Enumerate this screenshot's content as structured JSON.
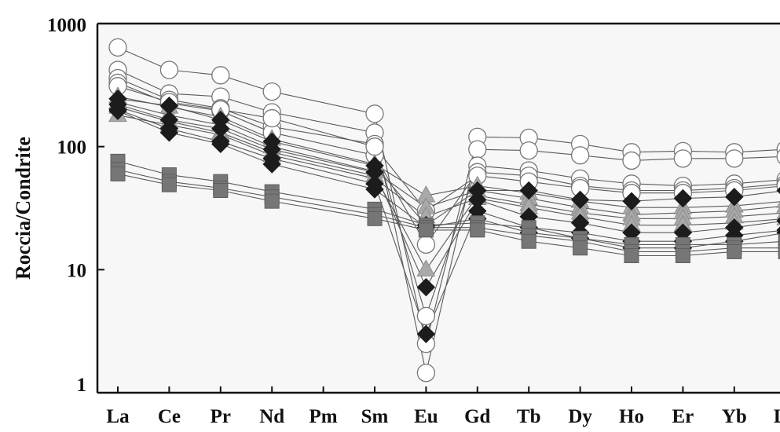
{
  "chart_data": {
    "type": "line",
    "title": "",
    "xlabel": "",
    "ylabel": "Roccia/Condrite",
    "yscale": "log",
    "ylim": [
      1,
      1000
    ],
    "yticks": [
      {
        "value": 1,
        "label": "1"
      },
      {
        "value": 10,
        "label": "10"
      },
      {
        "value": 100,
        "label": "100"
      },
      {
        "value": 1000,
        "label": "1000"
      }
    ],
    "categories": [
      "La",
      "Ce",
      "Pr",
      "Nd",
      "Pm",
      "Sm",
      "Eu",
      "Gd",
      "Tb",
      "Dy",
      "Ho",
      "Er",
      "Yb",
      "Lu"
    ],
    "grid": false,
    "legend": "none",
    "colors": {
      "background": "#f7f7f7",
      "line": "#5a5a5a",
      "open_circle_fill": "#ffffff",
      "open_circle_stroke": "#777777",
      "triangle": "#a9a9a9",
      "triangle_stroke": "#8c8c8c",
      "diamond": "#1c1c1c",
      "square": "#767676",
      "square_stroke": "#5e5e5e"
    },
    "series": [
      {
        "marker": "circle",
        "values": [
          640,
          420,
          380,
          280,
          null,
          185,
          2.5,
          120,
          118,
          105,
          90,
          92,
          90,
          95
        ]
      },
      {
        "marker": "circle",
        "values": [
          420,
          270,
          255,
          190,
          null,
          130,
          1.45,
          95,
          93,
          85,
          77,
          80,
          80,
          83
        ]
      },
      {
        "marker": "circle",
        "values": [
          360,
          240,
          205,
          145,
          null,
          105,
          4.2,
          70,
          64,
          55,
          50,
          48,
          50,
          54
        ]
      },
      {
        "marker": "circle",
        "values": [
          330,
          225,
          195,
          130,
          null,
          85,
          16,
          62,
          58,
          48,
          44,
          44,
          46,
          50
        ]
      },
      {
        "marker": "circle",
        "values": [
          310,
          230,
          200,
          170,
          null,
          100,
          30,
          58,
          52,
          46,
          42,
          42,
          44,
          48
        ]
      },
      {
        "marker": "triangle",
        "values": [
          255,
          210,
          175,
          115,
          null,
          72,
          40,
          48,
          42,
          36,
          32,
          32,
          33,
          36
        ]
      },
      {
        "marker": "triangle",
        "values": [
          230,
          180,
          150,
          100,
          null,
          63,
          32,
          44,
          38,
          32,
          28,
          29,
          30,
          33
        ]
      },
      {
        "marker": "triangle",
        "values": [
          210,
          160,
          130,
          90,
          null,
          58,
          10,
          40,
          34,
          29,
          26,
          26,
          27,
          29
        ]
      },
      {
        "marker": "triangle",
        "values": [
          180,
          150,
          125,
          85,
          null,
          55,
          27,
          38,
          32,
          27,
          23,
          23,
          24,
          26
        ]
      },
      {
        "marker": "diamond",
        "values": [
          245,
          215,
          165,
          110,
          null,
          70,
          23,
          44,
          44,
          37,
          36,
          38,
          39,
          44
        ]
      },
      {
        "marker": "diamond",
        "values": [
          220,
          165,
          140,
          95,
          null,
          62,
          7.2,
          37,
          27,
          24,
          20,
          20,
          22,
          25
        ]
      },
      {
        "marker": "diamond",
        "values": [
          200,
          140,
          110,
          80,
          null,
          50,
          3.0,
          30,
          22,
          20,
          17,
          17,
          19,
          21
        ]
      },
      {
        "marker": "diamond",
        "values": [
          195,
          130,
          105,
          72,
          null,
          45,
          22,
          26,
          20,
          18,
          15,
          15,
          17,
          20
        ]
      },
      {
        "marker": "square",
        "values": [
          76,
          59,
          52,
          43,
          null,
          31,
          23,
          24,
          22,
          18,
          16,
          16,
          16,
          17
        ]
      },
      {
        "marker": "square",
        "values": [
          65,
          52,
          46,
          39,
          null,
          28,
          22,
          22,
          19,
          17,
          14,
          14,
          15,
          15
        ]
      },
      {
        "marker": "square",
        "values": [
          60,
          49,
          44,
          36,
          null,
          26,
          21,
          21,
          17,
          15,
          13,
          13,
          14,
          14
        ]
      }
    ]
  }
}
